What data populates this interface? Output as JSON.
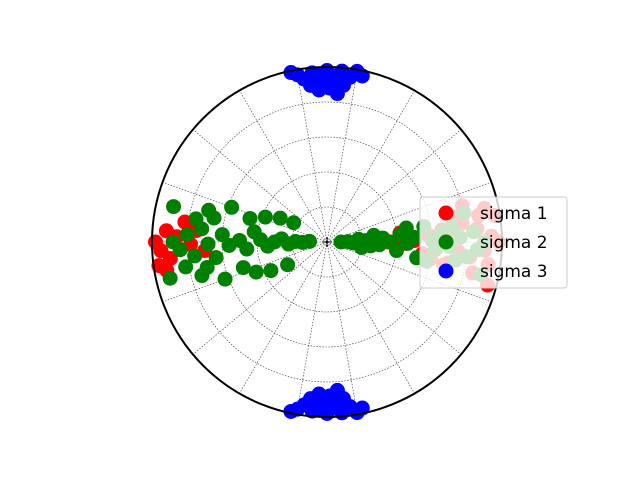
{
  "chart_data": {
    "type": "scatter",
    "projection": "stereonet",
    "title": "",
    "grid": true,
    "legend_placement": "right",
    "marker": "circle",
    "series": [
      {
        "name": "sigma 1",
        "color": "#ff0000",
        "points": [
          [
            0,
            0.98
          ],
          [
            2,
            0.94
          ],
          [
            -3,
            0.9
          ],
          [
            5,
            0.86
          ],
          [
            -6,
            0.82
          ],
          [
            8,
            0.78
          ],
          [
            -4,
            0.75
          ],
          [
            3,
            0.71
          ],
          [
            -8,
            0.93
          ],
          [
            10,
            0.88
          ],
          [
            -10,
            0.7
          ],
          [
            6,
            0.66
          ],
          [
            -2,
            0.62
          ],
          [
            4,
            0.58
          ],
          [
            12,
            0.92
          ],
          [
            -12,
            0.85
          ],
          [
            1,
            0.5
          ],
          [
            -1,
            0.45
          ],
          [
            7,
            0.42
          ],
          [
            -5,
            0.4
          ],
          [
            15,
            0.8
          ],
          [
            -15,
            0.95
          ],
          [
            9,
            0.97
          ],
          [
            -7,
            0.55
          ],
          [
            0,
            0.35
          ],
          [
            3,
            0.3
          ],
          [
            -9,
            0.6
          ],
          [
            11,
            0.74
          ],
          [
            -11,
            0.68
          ],
          [
            2,
            0.25
          ],
          [
            180,
            0.98
          ],
          [
            183,
            0.95
          ],
          [
            176,
            0.92
          ],
          [
            186,
            0.9
          ],
          [
            178,
            0.86
          ],
          [
            172,
            0.82
          ],
          [
            188,
            0.97
          ],
          [
            181,
            0.78
          ],
          [
            175,
            0.75
          ],
          [
            184,
            0.7
          ],
          [
            190,
            0.93
          ]
        ]
      },
      {
        "name": "sigma 2",
        "color": "#008000",
        "points": [
          [
            0,
            0.9
          ],
          [
            -3,
            0.86
          ],
          [
            4,
            0.84
          ],
          [
            -6,
            0.8
          ],
          [
            2,
            0.76
          ],
          [
            7,
            0.72
          ],
          [
            -2,
            0.7
          ],
          [
            -8,
            0.74
          ],
          [
            5,
            0.66
          ],
          [
            -4,
            0.62
          ],
          [
            1,
            0.6
          ],
          [
            9,
            0.56
          ],
          [
            -10,
            0.52
          ],
          [
            3,
            0.5
          ],
          [
            -1,
            0.46
          ],
          [
            6,
            0.42
          ],
          [
            -7,
            0.4
          ],
          [
            0,
            0.36
          ],
          [
            4,
            0.32
          ],
          [
            -3,
            0.3
          ],
          [
            8,
            0.27
          ],
          [
            -5,
            0.25
          ],
          [
            2,
            0.22
          ],
          [
            -9,
            0.2
          ],
          [
            12,
            0.8
          ],
          [
            -12,
            0.9
          ],
          [
            10,
            0.46
          ],
          [
            -11,
            0.58
          ],
          [
            5,
            0.18
          ],
          [
            -2,
            0.15
          ],
          [
            1,
            0.12
          ],
          [
            0,
            0.08
          ],
          [
            180,
            0.88
          ],
          [
            183,
            0.84
          ],
          [
            177,
            0.8
          ],
          [
            186,
            0.76
          ],
          [
            174,
            0.72
          ],
          [
            181,
            0.68
          ],
          [
            188,
            0.64
          ],
          [
            176,
            0.6
          ],
          [
            182,
            0.56
          ],
          [
            179,
            0.5
          ],
          [
            185,
            0.46
          ],
          [
            172,
            0.42
          ],
          [
            178,
            0.38
          ],
          [
            184,
            0.34
          ],
          [
            180,
            0.3
          ],
          [
            176,
            0.26
          ],
          [
            183,
            0.22
          ],
          [
            179,
            0.18
          ],
          [
            181,
            0.14
          ],
          [
            178,
            0.1
          ],
          [
            190,
            0.82
          ],
          [
            170,
            0.76
          ],
          [
            192,
            0.7
          ],
          [
            168,
            0.66
          ],
          [
            195,
            0.74
          ],
          [
            165,
            0.7
          ],
          [
            200,
            0.62
          ],
          [
            160,
            0.58
          ],
          [
            197,
            0.5
          ],
          [
            163,
            0.46
          ],
          [
            203,
            0.44
          ],
          [
            158,
            0.38
          ],
          [
            207,
            0.36
          ],
          [
            153,
            0.3
          ],
          [
            210,
            0.26
          ],
          [
            150,
            0.22
          ],
          [
            193,
            0.92
          ],
          [
            167,
            0.9
          ]
        ]
      },
      {
        "name": "sigma 3",
        "color": "#0000ff",
        "points": [
          [
            90,
            0.98
          ],
          [
            92,
            0.96
          ],
          [
            88,
            0.95
          ],
          [
            95,
            0.97
          ],
          [
            85,
            0.98
          ],
          [
            98,
            0.94
          ],
          [
            82,
            0.95
          ],
          [
            91,
            0.93
          ],
          [
            87,
            0.92
          ],
          [
            94,
            0.91
          ],
          [
            100,
            0.97
          ],
          [
            80,
            0.99
          ],
          [
            96,
            0.9
          ],
          [
            84,
            0.9
          ],
          [
            89,
            0.88
          ],
          [
            93,
            0.87
          ],
          [
            102,
            0.99
          ],
          [
            78,
            0.97
          ],
          [
            86,
            0.85
          ],
          [
            270,
            0.98
          ],
          [
            268,
            0.96
          ],
          [
            272,
            0.95
          ],
          [
            265,
            0.97
          ],
          [
            275,
            0.98
          ],
          [
            262,
            0.94
          ],
          [
            278,
            0.95
          ],
          [
            269,
            0.93
          ],
          [
            273,
            0.92
          ],
          [
            266,
            0.91
          ],
          [
            260,
            0.97
          ],
          [
            280,
            0.99
          ],
          [
            264,
            0.9
          ],
          [
            276,
            0.9
          ],
          [
            271,
            0.88
          ],
          [
            267,
            0.87
          ],
          [
            258,
            0.99
          ],
          [
            282,
            0.97
          ],
          [
            274,
            0.85
          ],
          [
            270,
            0.9
          ]
        ]
      }
    ]
  }
}
